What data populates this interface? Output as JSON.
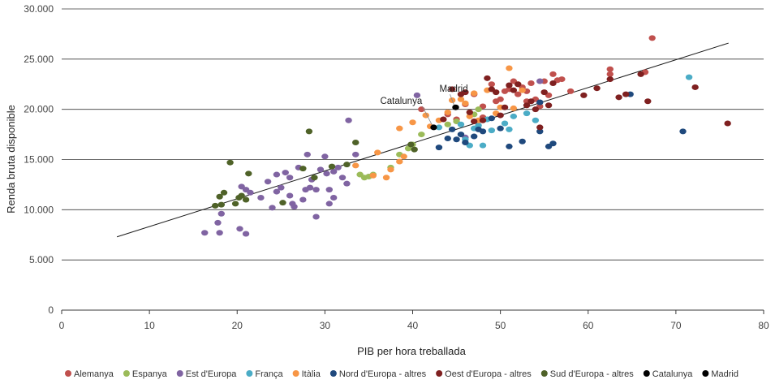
{
  "chart_data": {
    "type": "scatter",
    "xlabel": "PIB per hora treballada",
    "ylabel": "Renda bruta disponible",
    "xlim": [
      0,
      80
    ],
    "ylim": [
      0,
      30000
    ],
    "x_ticks": [
      "0",
      "10",
      "20",
      "30",
      "40",
      "50",
      "60",
      "70",
      "80"
    ],
    "y_ticks": [
      "0",
      "5.000",
      "10.000",
      "15.000",
      "20.000",
      "25.000",
      "30.000"
    ],
    "grid": "horizontal",
    "legend_position": "bottom",
    "trendline": {
      "x": [
        6.3,
        76.0
      ],
      "y": [
        7300,
        26600
      ]
    },
    "annotations": [
      {
        "text": "Catalunya",
        "series": "Catalunya"
      },
      {
        "text": "Madrid",
        "series": "Madrid"
      }
    ],
    "series": [
      {
        "name": "Alemanya",
        "color": "#c0504d",
        "points": [
          [
            41,
            20000
          ],
          [
            44,
            19500
          ],
          [
            45,
            19000
          ],
          [
            46,
            20500
          ],
          [
            47,
            21500
          ],
          [
            48,
            19200
          ],
          [
            49,
            22500
          ],
          [
            49.5,
            20800
          ],
          [
            50,
            21000
          ],
          [
            50.5,
            21800
          ],
          [
            51,
            22000
          ],
          [
            51.5,
            22800
          ],
          [
            52,
            21500
          ],
          [
            52.5,
            22200
          ],
          [
            53,
            21800
          ],
          [
            53.5,
            22600
          ],
          [
            54,
            21000
          ],
          [
            55,
            22800
          ],
          [
            55.5,
            21400
          ],
          [
            56,
            23500
          ],
          [
            56.5,
            22900
          ],
          [
            57,
            23000
          ],
          [
            58,
            21800
          ],
          [
            62.5,
            23500
          ],
          [
            62.5,
            24000
          ],
          [
            66.5,
            23700
          ],
          [
            67.3,
            27100
          ],
          [
            53,
            20800
          ],
          [
            54.5,
            20300
          ],
          [
            48,
            20300
          ]
        ]
      },
      {
        "name": "Espanya",
        "color": "#9bbb59",
        "points": [
          [
            34,
            13500
          ],
          [
            34.5,
            13200
          ],
          [
            35,
            13300
          ],
          [
            35.5,
            13500
          ],
          [
            37.5,
            14200
          ],
          [
            38.5,
            15500
          ],
          [
            39.5,
            16100
          ],
          [
            40,
            16500
          ],
          [
            41,
            17500
          ],
          [
            44,
            18500
          ],
          [
            45,
            18800
          ],
          [
            47,
            19500
          ],
          [
            47.5,
            20000
          ]
        ]
      },
      {
        "name": "Est d'Europa",
        "color": "#8064a2",
        "points": [
          [
            16.3,
            7700
          ],
          [
            17.8,
            8700
          ],
          [
            18,
            7700
          ],
          [
            18.2,
            9600
          ],
          [
            20.3,
            8100
          ],
          [
            21,
            7600
          ],
          [
            20.5,
            12300
          ],
          [
            21,
            12000
          ],
          [
            21.5,
            11700
          ],
          [
            22.7,
            11200
          ],
          [
            23.5,
            12800
          ],
          [
            24,
            10200
          ],
          [
            24.5,
            13500
          ],
          [
            25,
            12200
          ],
          [
            25.5,
            13700
          ],
          [
            26,
            11400
          ],
          [
            26.3,
            10600
          ],
          [
            26.5,
            10300
          ],
          [
            27,
            14200
          ],
          [
            27.5,
            11000
          ],
          [
            27.8,
            12000
          ],
          [
            28,
            15500
          ],
          [
            28.3,
            12200
          ],
          [
            29,
            9300
          ],
          [
            29.5,
            14000
          ],
          [
            30,
            15300
          ],
          [
            30.2,
            13600
          ],
          [
            30.5,
            12000
          ],
          [
            31,
            13800
          ],
          [
            31.5,
            14200
          ],
          [
            32,
            13200
          ],
          [
            32.5,
            12600
          ],
          [
            32.7,
            18900
          ],
          [
            33.5,
            15500
          ],
          [
            29,
            12000
          ],
          [
            30.5,
            10600
          ],
          [
            31,
            11200
          ],
          [
            24.5,
            11800
          ],
          [
            26,
            13200
          ],
          [
            28.5,
            13000
          ],
          [
            40.5,
            21400
          ],
          [
            46,
            17200
          ],
          [
            54.5,
            22800
          ]
        ]
      },
      {
        "name": "França",
        "color": "#4bacc6",
        "points": [
          [
            43,
            18200
          ],
          [
            45.5,
            18500
          ],
          [
            46,
            17000
          ],
          [
            46.5,
            16400
          ],
          [
            47,
            18100
          ],
          [
            47.5,
            18400
          ],
          [
            48,
            16400
          ],
          [
            48.5,
            19000
          ],
          [
            49,
            17900
          ],
          [
            50.5,
            18600
          ],
          [
            51,
            18000
          ],
          [
            51.5,
            19300
          ],
          [
            53,
            19600
          ],
          [
            54,
            18900
          ],
          [
            71.5,
            23200
          ]
        ]
      },
      {
        "name": "Itàlia",
        "color": "#f79646",
        "points": [
          [
            33.5,
            14400
          ],
          [
            35.5,
            13400
          ],
          [
            36,
            15700
          ],
          [
            37,
            13200
          ],
          [
            37.5,
            14000
          ],
          [
            38.5,
            14800
          ],
          [
            39,
            15300
          ],
          [
            40,
            18700
          ],
          [
            41.5,
            19400
          ],
          [
            42,
            18300
          ],
          [
            43,
            18900
          ],
          [
            44,
            19700
          ],
          [
            44.5,
            20900
          ],
          [
            45.5,
            21000
          ],
          [
            46,
            20600
          ],
          [
            46.5,
            19300
          ],
          [
            47,
            21600
          ],
          [
            47.5,
            18900
          ],
          [
            48.5,
            21900
          ],
          [
            49.5,
            19600
          ],
          [
            50,
            20200
          ],
          [
            51,
            24100
          ],
          [
            51.5,
            20100
          ],
          [
            52,
            22500
          ],
          [
            52.5,
            21900
          ],
          [
            38.5,
            18100
          ]
        ]
      },
      {
        "name": "Nord d'Europa - altres",
        "color": "#1f497d",
        "points": [
          [
            43,
            16200
          ],
          [
            44,
            17100
          ],
          [
            44.5,
            18000
          ],
          [
            45,
            17000
          ],
          [
            45.5,
            17500
          ],
          [
            46,
            16700
          ],
          [
            47,
            17300
          ],
          [
            47.5,
            18000
          ],
          [
            48,
            17800
          ],
          [
            49,
            19100
          ],
          [
            50,
            18100
          ],
          [
            51,
            16300
          ],
          [
            52.5,
            16800
          ],
          [
            54.5,
            20700
          ],
          [
            54.5,
            17800
          ],
          [
            55.5,
            16300
          ],
          [
            56,
            16600
          ],
          [
            64.8,
            21500
          ],
          [
            70.8,
            17800
          ]
        ]
      },
      {
        "name": "Oest d'Europa - altres",
        "color": "#7f2020",
        "points": [
          [
            43.5,
            19000
          ],
          [
            44.5,
            22000
          ],
          [
            45.5,
            21500
          ],
          [
            46,
            21700
          ],
          [
            46.5,
            19700
          ],
          [
            47,
            18800
          ],
          [
            48,
            18900
          ],
          [
            48.5,
            23100
          ],
          [
            49,
            22000
          ],
          [
            49.5,
            21700
          ],
          [
            50,
            19400
          ],
          [
            50.5,
            20200
          ],
          [
            51,
            22400
          ],
          [
            51.5,
            21900
          ],
          [
            52,
            22500
          ],
          [
            53,
            20400
          ],
          [
            53.5,
            20800
          ],
          [
            54,
            20000
          ],
          [
            54.5,
            18200
          ],
          [
            55,
            21700
          ],
          [
            55.5,
            20400
          ],
          [
            56,
            22600
          ],
          [
            59.5,
            21400
          ],
          [
            61,
            22100
          ],
          [
            62.5,
            23000
          ],
          [
            63.5,
            21200
          ],
          [
            64.3,
            21500
          ],
          [
            66,
            23500
          ],
          [
            66.8,
            20800
          ],
          [
            72.2,
            22200
          ],
          [
            75.9,
            18600
          ]
        ]
      },
      {
        "name": "Sud d'Europa - altres",
        "color": "#4f6228",
        "points": [
          [
            17.5,
            10400
          ],
          [
            18,
            11300
          ],
          [
            18.2,
            10500
          ],
          [
            18.5,
            11700
          ],
          [
            19.2,
            14700
          ],
          [
            19.8,
            10600
          ],
          [
            20.2,
            11200
          ],
          [
            20.5,
            11400
          ],
          [
            21,
            11000
          ],
          [
            21.3,
            13600
          ],
          [
            25.2,
            10700
          ],
          [
            27.5,
            14100
          ],
          [
            28.2,
            17800
          ],
          [
            28.8,
            13200
          ],
          [
            30.8,
            14300
          ],
          [
            32.5,
            14500
          ],
          [
            33.5,
            16700
          ],
          [
            39.8,
            16500
          ],
          [
            40.2,
            16000
          ]
        ]
      },
      {
        "name": "Catalunya",
        "color": "#000000",
        "points": [
          [
            42.4,
            18200
          ]
        ]
      },
      {
        "name": "Madrid",
        "color": "#000000",
        "points": [
          [
            44.9,
            20200
          ]
        ]
      }
    ]
  }
}
